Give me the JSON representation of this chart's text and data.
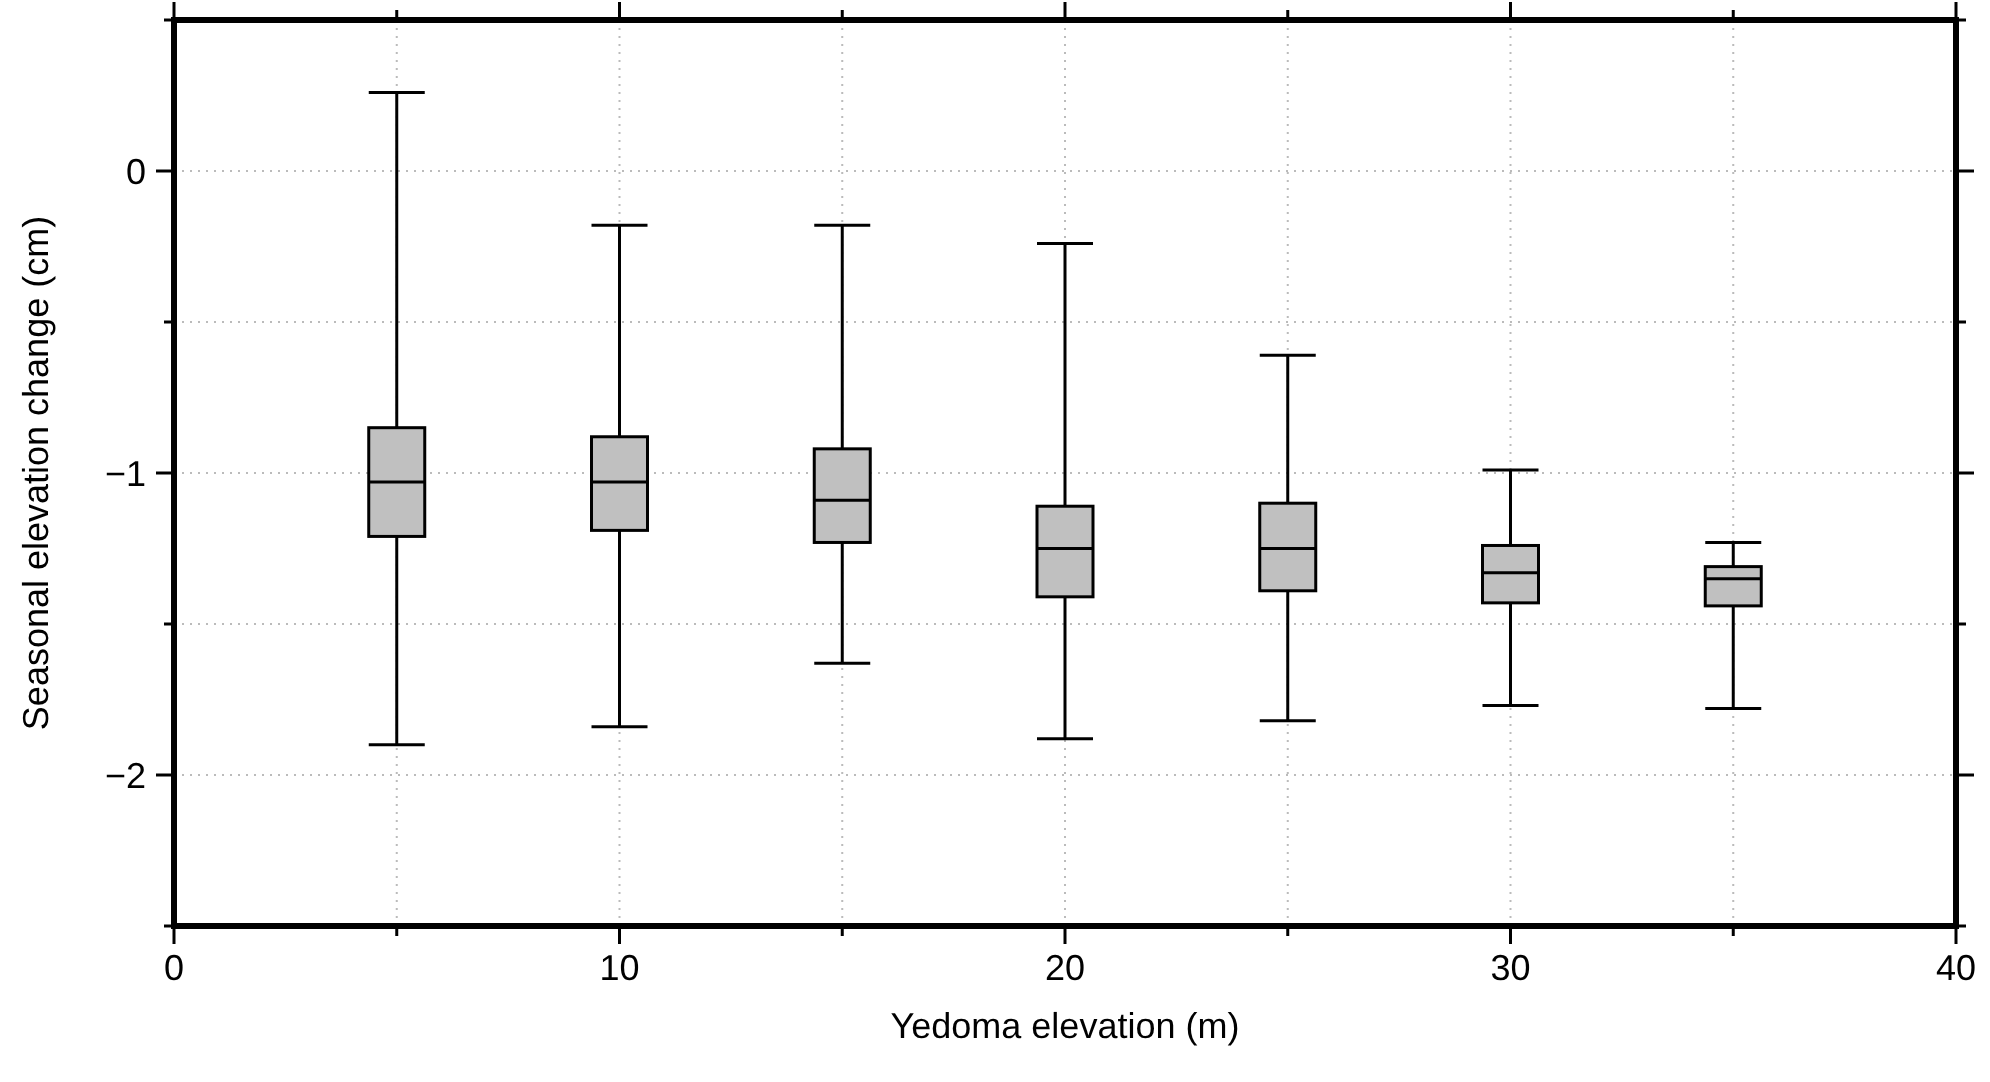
{
  "chart_data": {
    "type": "box",
    "xlabel": "Yedoma elevation (m)",
    "ylabel": "Seasonal elevation change (cm)",
    "x": [
      5,
      10,
      15,
      20,
      25,
      30,
      35
    ],
    "boxes": [
      {
        "low": -1.9,
        "q1": -1.21,
        "median": -1.03,
        "q3": -0.85,
        "high": 0.26
      },
      {
        "low": -1.84,
        "q1": -1.19,
        "median": -1.03,
        "q3": -0.88,
        "high": -0.18
      },
      {
        "low": -1.63,
        "q1": -1.23,
        "median": -1.09,
        "q3": -0.92,
        "high": -0.18
      },
      {
        "low": -1.88,
        "q1": -1.41,
        "median": -1.25,
        "q3": -1.11,
        "high": -0.24
      },
      {
        "low": -1.82,
        "q1": -1.39,
        "median": -1.25,
        "q3": -1.1,
        "high": -0.61
      },
      {
        "low": -1.77,
        "q1": -1.43,
        "median": -1.33,
        "q3": -1.24,
        "high": -0.99
      },
      {
        "low": -1.78,
        "q1": -1.44,
        "median": -1.35,
        "q3": -1.31,
        "high": -1.23
      }
    ],
    "color": "#c0c0c0",
    "xlim": [
      0,
      40
    ],
    "xticks": [
      0,
      {
        "value": 5,
        "label": null
      },
      10,
      {
        "value": 15,
        "label": null
      },
      20,
      {
        "value": 25,
        "label": null
      },
      30,
      {
        "value": 35,
        "label": null
      },
      40
    ],
    "ylim": [
      -2.5,
      0.5
    ],
    "yticks": [
      {
        "value": -2.5,
        "label": null
      },
      -2,
      {
        "value": -1.5,
        "label": null
      },
      -1,
      {
        "value": -0.5,
        "label": null
      },
      0,
      {
        "value": 0.5,
        "label": null
      }
    ],
    "grid": true
  }
}
